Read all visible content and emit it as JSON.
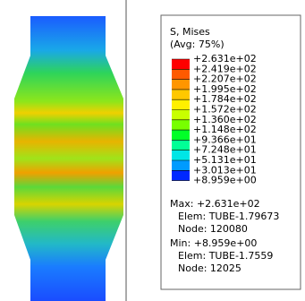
{
  "legend": {
    "title": "S, Mises",
    "subtitle": "(Avg: 75%)",
    "labels": [
      "+2.631e+02",
      "+2.419e+02",
      "+2.207e+02",
      "+1.995e+02",
      "+1.784e+02",
      "+1.572e+02",
      "+1.360e+02",
      "+1.148e+02",
      "+9.366e+01",
      "+7.248e+01",
      "+5.131e+01",
      "+3.013e+01",
      "+8.959e+00"
    ],
    "colors": [
      "#ff0000",
      "#ff5a00",
      "#ff9600",
      "#ffc800",
      "#fff000",
      "#c8ff00",
      "#78ff00",
      "#00ff28",
      "#00ff96",
      "#00e6e6",
      "#009bff",
      "#0028ff"
    ]
  },
  "max": {
    "value": "Max: +2.631e+02",
    "elem": "Elem: TUBE-1.79673",
    "node": "Node: 120080"
  },
  "min": {
    "value": "Min: +8.959e+00",
    "elem": "Elem: TUBE-1.7559",
    "node": "Node: 12025"
  }
}
